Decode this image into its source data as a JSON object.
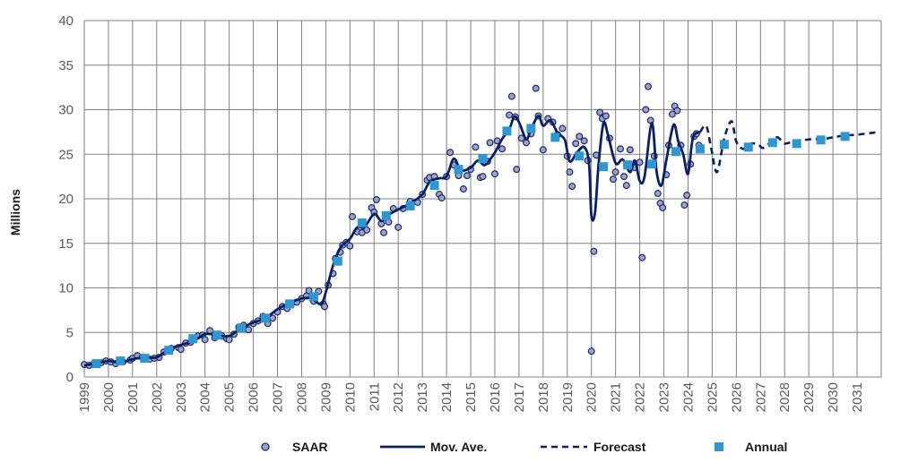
{
  "chart_data": {
    "type": "line",
    "ylabel": "Millions",
    "ylim": [
      0,
      40
    ],
    "xlim": [
      1999,
      2032
    ],
    "y_ticks": [
      "0",
      "5",
      "10",
      "15",
      "20",
      "25",
      "30",
      "35",
      "40"
    ],
    "x_ticks": [
      "1999",
      "2000",
      "2001",
      "2002",
      "2003",
      "2004",
      "2005",
      "2006",
      "2007",
      "2008",
      "2009",
      "2010",
      "2011",
      "2012",
      "2013",
      "2014",
      "2015",
      "2016",
      "2017",
      "2018",
      "2019",
      "2020",
      "2021",
      "2022",
      "2023",
      "2024",
      "2025",
      "2026",
      "2027",
      "2028",
      "2029",
      "2030",
      "2031"
    ],
    "grid": true,
    "legend_position": "bottom",
    "legend": [
      "SAAR",
      "Mov. Ave.",
      "Forecast",
      "Annual"
    ],
    "colors": {
      "saar_fill": "#9aa3c9",
      "saar_edge": "#1f2a6b",
      "mov_ave": "#0b1f66",
      "forecast": "#0b1f66",
      "annual": "#2e96d2",
      "grid": "#808080"
    },
    "series": [
      {
        "name": "Annual",
        "marker": "square",
        "points": [
          [
            1999.5,
            1.5
          ],
          [
            2000.5,
            1.8
          ],
          [
            2001.5,
            2.1
          ],
          [
            2002.5,
            3.0
          ],
          [
            2003.5,
            4.3
          ],
          [
            2004.5,
            4.7
          ],
          [
            2005.5,
            5.5
          ],
          [
            2006.5,
            6.6
          ],
          [
            2007.5,
            8.2
          ],
          [
            2008.5,
            9.0
          ],
          [
            2009.5,
            13.0
          ],
          [
            2010.5,
            17.3
          ],
          [
            2011.5,
            18.1
          ],
          [
            2012.5,
            19.2
          ],
          [
            2013.5,
            21.5
          ],
          [
            2014.5,
            23.3
          ],
          [
            2015.5,
            24.5
          ],
          [
            2016.5,
            27.6
          ],
          [
            2017.5,
            27.9
          ],
          [
            2018.5,
            26.9
          ],
          [
            2019.5,
            24.8
          ],
          [
            2020.5,
            23.6
          ],
          [
            2021.5,
            23.8
          ],
          [
            2022.5,
            23.9
          ],
          [
            2023.5,
            25.3
          ],
          [
            2024.5,
            25.6
          ],
          [
            2025.5,
            26.1
          ],
          [
            2026.5,
            25.8
          ],
          [
            2027.5,
            26.3
          ],
          [
            2028.5,
            26.2
          ],
          [
            2029.5,
            26.6
          ],
          [
            2030.5,
            27.0
          ]
        ]
      },
      {
        "name": "Mov. Ave.",
        "style": "solid",
        "points": [
          [
            1999,
            1.3
          ],
          [
            1999.5,
            1.5
          ],
          [
            2000,
            1.8
          ],
          [
            2000.5,
            1.6
          ],
          [
            2001,
            2.0
          ],
          [
            2001.5,
            2.2
          ],
          [
            2002,
            2.2
          ],
          [
            2002.5,
            3.1
          ],
          [
            2003,
            3.6
          ],
          [
            2003.5,
            4.0
          ],
          [
            2004,
            4.8
          ],
          [
            2004.5,
            4.7
          ],
          [
            2005,
            4.6
          ],
          [
            2005.5,
            5.5
          ],
          [
            2006,
            6.1
          ],
          [
            2006.5,
            6.6
          ],
          [
            2007,
            7.6
          ],
          [
            2007.5,
            8.3
          ],
          [
            2008,
            8.8
          ],
          [
            2008.4,
            8.8
          ],
          [
            2008.8,
            8.2
          ],
          [
            2009,
            9.5
          ],
          [
            2009.3,
            12.5
          ],
          [
            2009.6,
            14.5
          ],
          [
            2010,
            15.5
          ],
          [
            2010.3,
            16.8
          ],
          [
            2010.6,
            16.8
          ],
          [
            2011,
            18.3
          ],
          [
            2011.3,
            17.5
          ],
          [
            2011.6,
            18.2
          ],
          [
            2012,
            18.8
          ],
          [
            2012.5,
            19.5
          ],
          [
            2013,
            20.5
          ],
          [
            2013.3,
            21.9
          ],
          [
            2013.7,
            22.3
          ],
          [
            2014,
            22.5
          ],
          [
            2014.3,
            24.5
          ],
          [
            2014.6,
            23.2
          ],
          [
            2015,
            23.5
          ],
          [
            2015.3,
            24.3
          ],
          [
            2015.6,
            23.8
          ],
          [
            2016,
            25.2
          ],
          [
            2016.3,
            26.7
          ],
          [
            2016.6,
            27.8
          ],
          [
            2016.8,
            29.2
          ],
          [
            2017,
            28.6
          ],
          [
            2017.3,
            26.7
          ],
          [
            2017.5,
            27.8
          ],
          [
            2017.8,
            29.3
          ],
          [
            2018,
            28.2
          ],
          [
            2018.3,
            28.8
          ],
          [
            2018.6,
            27.4
          ],
          [
            2018.9,
            26.6
          ],
          [
            2019.1,
            24.2
          ],
          [
            2019.4,
            25.2
          ],
          [
            2019.7,
            25.8
          ],
          [
            2019.9,
            24.0
          ],
          [
            2020.0,
            18.1
          ],
          [
            2020.15,
            18.5
          ],
          [
            2020.3,
            24.0
          ],
          [
            2020.5,
            28.5
          ],
          [
            2020.7,
            27.0
          ],
          [
            2021,
            24.0
          ],
          [
            2021.3,
            24.4
          ],
          [
            2021.6,
            23.0
          ],
          [
            2021.8,
            24.3
          ],
          [
            2022,
            22.0
          ],
          [
            2022.2,
            22.5
          ],
          [
            2022.5,
            28.5
          ],
          [
            2022.7,
            23.0
          ],
          [
            2022.9,
            21.5
          ],
          [
            2023.1,
            24.3
          ],
          [
            2023.4,
            28.3
          ],
          [
            2023.6,
            26.4
          ],
          [
            2023.8,
            25.0
          ],
          [
            2024,
            22.8
          ],
          [
            2024.2,
            26.8
          ],
          [
            2024.5,
            27.5
          ]
        ]
      },
      {
        "name": "Forecast",
        "style": "dashed",
        "points": [
          [
            2024.5,
            27.5
          ],
          [
            2024.75,
            28.2
          ],
          [
            2024.95,
            25.8
          ],
          [
            2025.2,
            23.0
          ],
          [
            2025.5,
            26.8
          ],
          [
            2025.8,
            28.7
          ],
          [
            2026,
            26.4
          ],
          [
            2026.3,
            25.6
          ],
          [
            2026.6,
            26.2
          ],
          [
            2026.9,
            26.1
          ],
          [
            2027.1,
            25.7
          ],
          [
            2027.4,
            26.3
          ],
          [
            2027.7,
            26.9
          ],
          [
            2028,
            26.2
          ],
          [
            2028.4,
            26.5
          ],
          [
            2028.8,
            26.6
          ],
          [
            2029.2,
            26.7
          ],
          [
            2029.6,
            26.7
          ],
          [
            2030,
            26.9
          ],
          [
            2030.5,
            27.1
          ],
          [
            2031,
            27.2
          ],
          [
            2031.6,
            27.4
          ],
          [
            2031.9,
            27.5
          ]
        ]
      },
      {
        "name": "SAAR",
        "marker": "circle",
        "points": [
          [
            1999.0,
            1.4
          ],
          [
            1999.2,
            1.3
          ],
          [
            1999.4,
            1.5
          ],
          [
            1999.7,
            1.6
          ],
          [
            1999.9,
            1.8
          ],
          [
            2000.1,
            1.7
          ],
          [
            2000.3,
            1.5
          ],
          [
            2000.6,
            1.7
          ],
          [
            2000.9,
            1.9
          ],
          [
            2001.0,
            2.1
          ],
          [
            2001.2,
            2.4
          ],
          [
            2001.4,
            2.2
          ],
          [
            2001.7,
            2.0
          ],
          [
            2001.9,
            2.1
          ],
          [
            2002.1,
            2.2
          ],
          [
            2002.3,
            2.8
          ],
          [
            2002.6,
            3.2
          ],
          [
            2002.9,
            3.3
          ],
          [
            2003.0,
            3.1
          ],
          [
            2003.2,
            3.8
          ],
          [
            2003.4,
            3.9
          ],
          [
            2003.7,
            4.6
          ],
          [
            2003.9,
            4.7
          ],
          [
            2004.0,
            4.2
          ],
          [
            2004.2,
            5.2
          ],
          [
            2004.4,
            4.4
          ],
          [
            2004.7,
            4.6
          ],
          [
            2004.9,
            4.3
          ],
          [
            2005.0,
            4.2
          ],
          [
            2005.2,
            4.8
          ],
          [
            2005.4,
            5.6
          ],
          [
            2005.6,
            5.8
          ],
          [
            2005.8,
            5.3
          ],
          [
            2006.0,
            6.0
          ],
          [
            2006.2,
            6.3
          ],
          [
            2006.4,
            6.8
          ],
          [
            2006.6,
            6.0
          ],
          [
            2006.8,
            6.6
          ],
          [
            2007.0,
            7.3
          ],
          [
            2007.2,
            7.9
          ],
          [
            2007.4,
            7.7
          ],
          [
            2007.6,
            8.3
          ],
          [
            2007.8,
            8.4
          ],
          [
            2008.0,
            8.8
          ],
          [
            2008.2,
            9.1
          ],
          [
            2008.3,
            9.7
          ],
          [
            2008.5,
            8.5
          ],
          [
            2008.7,
            9.6
          ],
          [
            2008.9,
            8.2
          ],
          [
            2008.95,
            7.9
          ],
          [
            2009.1,
            10.3
          ],
          [
            2009.3,
            11.6
          ],
          [
            2009.4,
            13.3
          ],
          [
            2009.6,
            14.0
          ],
          [
            2009.7,
            14.8
          ],
          [
            2009.85,
            15.1
          ],
          [
            2010.0,
            14.7
          ],
          [
            2010.1,
            18.0
          ],
          [
            2010.3,
            16.3
          ],
          [
            2010.5,
            16.2
          ],
          [
            2010.7,
            16.5
          ],
          [
            2010.9,
            19.0
          ],
          [
            2011.0,
            18.5
          ],
          [
            2011.1,
            19.9
          ],
          [
            2011.3,
            17.2
          ],
          [
            2011.4,
            16.2
          ],
          [
            2011.6,
            17.4
          ],
          [
            2011.8,
            18.9
          ],
          [
            2012.0,
            16.8
          ],
          [
            2012.2,
            18.9
          ],
          [
            2012.5,
            19.7
          ],
          [
            2012.8,
            19.6
          ],
          [
            2013.0,
            20.5
          ],
          [
            2013.2,
            22.1
          ],
          [
            2013.3,
            22.4
          ],
          [
            2013.5,
            22.5
          ],
          [
            2013.7,
            20.5
          ],
          [
            2013.8,
            20.1
          ],
          [
            2014.0,
            22.5
          ],
          [
            2014.15,
            25.2
          ],
          [
            2014.3,
            23.8
          ],
          [
            2014.5,
            22.6
          ],
          [
            2014.7,
            21.1
          ],
          [
            2014.85,
            22.6
          ],
          [
            2015.0,
            23.3
          ],
          [
            2015.2,
            25.8
          ],
          [
            2015.4,
            22.4
          ],
          [
            2015.5,
            22.5
          ],
          [
            2015.7,
            24.2
          ],
          [
            2015.8,
            26.3
          ],
          [
            2016.0,
            22.8
          ],
          [
            2016.1,
            26.5
          ],
          [
            2016.3,
            25.6
          ],
          [
            2016.6,
            29.4
          ],
          [
            2016.7,
            31.5
          ],
          [
            2016.85,
            29.2
          ],
          [
            2016.9,
            23.3
          ],
          [
            2017.1,
            26.8
          ],
          [
            2017.3,
            26.3
          ],
          [
            2017.5,
            27.3
          ],
          [
            2017.7,
            32.4
          ],
          [
            2017.8,
            29.3
          ],
          [
            2018.0,
            25.5
          ],
          [
            2018.2,
            29.0
          ],
          [
            2018.4,
            28.6
          ],
          [
            2018.6,
            27.2
          ],
          [
            2018.8,
            27.9
          ],
          [
            2019.0,
            24.8
          ],
          [
            2019.1,
            23.0
          ],
          [
            2019.2,
            21.4
          ],
          [
            2019.35,
            26.2
          ],
          [
            2019.5,
            27.0
          ],
          [
            2019.7,
            26.5
          ],
          [
            2019.85,
            24.3
          ],
          [
            2020.0,
            2.9
          ],
          [
            2020.1,
            14.1
          ],
          [
            2020.2,
            24.9
          ],
          [
            2020.35,
            29.7
          ],
          [
            2020.45,
            29.0
          ],
          [
            2020.6,
            29.3
          ],
          [
            2020.75,
            26.8
          ],
          [
            2020.9,
            22.2
          ],
          [
            2021.0,
            23.0
          ],
          [
            2021.2,
            25.6
          ],
          [
            2021.35,
            22.5
          ],
          [
            2021.45,
            21.5
          ],
          [
            2021.6,
            25.5
          ],
          [
            2021.8,
            23.5
          ],
          [
            2022.0,
            24.1
          ],
          [
            2022.1,
            13.4
          ],
          [
            2022.25,
            30.0
          ],
          [
            2022.35,
            32.6
          ],
          [
            2022.45,
            28.8
          ],
          [
            2022.6,
            24.8
          ],
          [
            2022.75,
            20.6
          ],
          [
            2022.85,
            19.5
          ],
          [
            2022.95,
            19.0
          ],
          [
            2023.1,
            22.7
          ],
          [
            2023.2,
            26.0
          ],
          [
            2023.35,
            29.5
          ],
          [
            2023.45,
            30.4
          ],
          [
            2023.55,
            29.9
          ],
          [
            2023.7,
            26.0
          ],
          [
            2023.85,
            19.3
          ],
          [
            2023.95,
            20.4
          ],
          [
            2024.1,
            23.9
          ],
          [
            2024.25,
            27.0
          ],
          [
            2024.35,
            27.3
          ],
          [
            2024.45,
            26.0
          ]
        ]
      }
    ]
  }
}
